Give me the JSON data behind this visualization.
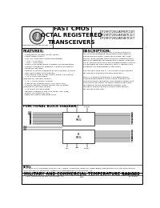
{
  "bg_color": "#ffffff",
  "border_color": "#000000",
  "title_header": "FAST CMOS\nOCTAL REGISTERED\nTRANSCEIVERS",
  "part_numbers_lines": [
    "IDT29FCT2052ATPB/TC1DT",
    "IDT29FCT2052APGB/TC1CT",
    "IDT29FCT2052ATGB/TC1CT"
  ],
  "features_title": "FEATURES:",
  "description_title": "DESCRIPTION:",
  "features_lines": [
    "Commercial features:",
    " - Input/output leakage ±15μA (max.)",
    " - CMOS power levels",
    " - True TTL input and output compatibility",
    "   • VIH = 2.0V (typ.)",
    "   • VOL = 0.5V (typ.)",
    " - Meets or exceeds JEDEC standard 18 specifications",
    " - Product available in Radiation 1 source verification",
    "   Enhanced services",
    " - Military products compliant to MIL-STD-883, Class B",
    "   and CMOS listed (dual marked)",
    " - Available in 8-bit, 16-bit, 24DIP, 28DIP, 10-contact,",
    "   A, B, D and S packages",
    "Features for IDT29FCT2052T:",
    " - A, B, C and D control grades",
    " - 8-pin driver outputs (50mA Ioh, 48mA Ioh)",
    " - Flow-off disable outputs permit 'bus insertion'",
    "Features for IDT29FCT2052T:",
    " - A, B and D system grades",
    " - Receiver outputs (1.6mA Ioh, 50mA Ioh, Sum)",
    "   (14mA Ioh, 50mA Ioh, 8A)",
    " - Reduced system switching noise"
  ],
  "desc_lines": [
    "The IDT29FCT2051TC1DT and IDT29FCT2054TC1-",
    "DT are 8-bit registered transceivers built using an",
    "advanced dual metal CMOS technology. Fast 8-bit",
    "back-to-back register simultaneously flowing in both",
    "directions between two bidirectional buses. Separate",
    "clock, reset/enable and 8 state output enable controls",
    "are provided for each direction. Both A-address and",
    "B outputs are guaranteed to sink 64mA.",
    "",
    "The IDT29FCT2051DT or T is a plug-in replacement",
    "for IDT29FCT2052DT/IDTF29FCT2051DT1.",
    "",
    "Due to IDT29FCT2052B/C/DT1 has bidirectional",
    "outputs automatically using enable comparators.",
    "This enhanced organization has minimal undershoot",
    "and controlled output fall times reducing the need",
    "for external series terminating resistors. The",
    "IDT29FCT2052DT part is a plug-in replacement",
    "for IDT29FCT1DT part."
  ],
  "functional_title": "FUNCTIONAL BLOCK DIAGRAM¹²",
  "left_signals": [
    "OEA",
    "OEB",
    "A0",
    "A1",
    "A2",
    "A3",
    "A4",
    "A5",
    "A6",
    "A7"
  ],
  "right_signals_top": [
    "B0",
    "B1",
    "B2",
    "B3",
    "B4",
    "B5",
    "B6",
    "B7"
  ],
  "right_signals_bot": [
    "B0",
    "B1",
    "B2",
    "B3",
    "B4",
    "B5",
    "B6",
    "B7"
  ],
  "ctrl_top": [
    "OEA",
    "OEB",
    "CLKAB"
  ],
  "ctrl_bot": [
    "OEA",
    "OEB",
    "CLKBA"
  ],
  "notes_lines": [
    "NOTES:",
    "1. OUTPUT THAT CONFORM DIRECTLY TO A JEDEC STANDARD, GND/VCC COMPLEMENT REFERENCE PULL-HOLDING OPTION",
    "Fairchild Logo is a registered trademark of Integrated Device Technology, Inc."
  ],
  "footer_military": "MILITARY AND COMMERCIAL TEMPERATURE RANGES",
  "footer_date": "JUNE 1995",
  "footer_page": "5-1",
  "footer_copy": "© 1995 Integrated Device Technology, Inc.",
  "footer_doc": "IDT-20564"
}
